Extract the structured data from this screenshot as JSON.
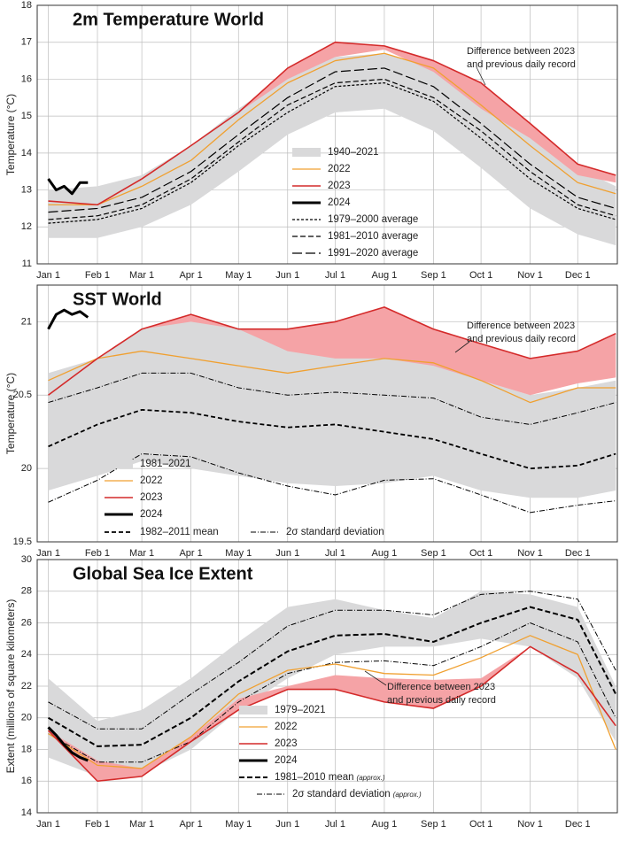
{
  "chart_data": [
    {
      "type": "line",
      "title": "2m Temperature World",
      "ylabel": "Temperature (°C)",
      "xlim": [
        -7,
        359
      ],
      "ylim": [
        11,
        18
      ],
      "yticks": [
        11,
        12,
        13,
        14,
        15,
        16,
        17,
        18
      ],
      "grid": true,
      "xticks": [
        {
          "value": 0,
          "label": "Jan 1"
        },
        {
          "value": 31,
          "label": "Feb 1"
        },
        {
          "value": 59,
          "label": "Mar 1"
        },
        {
          "value": 90,
          "label": "Apr 1"
        },
        {
          "value": 120,
          "label": "May 1"
        },
        {
          "value": 151,
          "label": "Jun 1"
        },
        {
          "value": 181,
          "label": "Jul 1"
        },
        {
          "value": 212,
          "label": "Aug 1"
        },
        {
          "value": 243,
          "label": "Sep 1"
        },
        {
          "value": 273,
          "label": "Oct 1"
        },
        {
          "value": 304,
          "label": "Nov 1"
        },
        {
          "value": 334,
          "label": "Dec 1"
        }
      ],
      "x": [
        0,
        31,
        59,
        90,
        120,
        151,
        181,
        212,
        243,
        273,
        304,
        334,
        358
      ],
      "annotation": [
        "Difference between 2023",
        "and previous daily record"
      ],
      "difference": {
        "color": "#f5a3a6",
        "lower": [
          12.7,
          12.6,
          13.3,
          14.2,
          15.1,
          16.0,
          16.6,
          16.8,
          16.2,
          15.2,
          14.4,
          13.4,
          13.2
        ],
        "upper": [
          12.7,
          12.6,
          13.3,
          14.2,
          15.1,
          16.3,
          17.0,
          16.9,
          16.5,
          15.9,
          14.8,
          13.7,
          13.4
        ]
      },
      "bands": [
        {
          "name": "1940–2021",
          "color": "#d9d9da",
          "lower": [
            11.7,
            11.7,
            12.0,
            12.6,
            13.5,
            14.5,
            15.1,
            15.2,
            14.6,
            13.6,
            12.5,
            11.8,
            11.5
          ],
          "upper": [
            13.0,
            13.1,
            13.4,
            14.2,
            15.2,
            16.1,
            16.6,
            16.7,
            16.3,
            15.4,
            14.5,
            13.6,
            13.1
          ]
        }
      ],
      "series": [
        {
          "name": "2022",
          "color": "#f0a030",
          "width": 1.3,
          "values": [
            12.6,
            12.6,
            13.1,
            13.8,
            14.9,
            15.9,
            16.5,
            16.7,
            16.3,
            15.3,
            14.2,
            13.2,
            12.9
          ]
        },
        {
          "name": "2023",
          "color": "#d42a2a",
          "width": 1.6,
          "values": [
            12.7,
            12.6,
            13.3,
            14.2,
            15.1,
            16.3,
            17.0,
            16.9,
            16.5,
            15.9,
            14.8,
            13.7,
            13.4
          ]
        },
        {
          "name": "2024",
          "color": "#000000",
          "width": 3,
          "x": [
            0,
            5,
            10,
            15,
            20,
            25
          ],
          "values": [
            13.3,
            13.0,
            13.1,
            12.9,
            13.2,
            13.2
          ]
        },
        {
          "name": "1979–2000 average",
          "color": "#000000",
          "width": 1.2,
          "dash": "3,2",
          "values": [
            12.1,
            12.2,
            12.5,
            13.2,
            14.2,
            15.1,
            15.8,
            15.9,
            15.4,
            14.4,
            13.3,
            12.5,
            12.2
          ]
        },
        {
          "name": "1981–2010 average",
          "color": "#000000",
          "width": 1.2,
          "dash": "6,3",
          "values": [
            12.2,
            12.3,
            12.6,
            13.3,
            14.3,
            15.3,
            15.9,
            16.0,
            15.5,
            14.6,
            13.5,
            12.6,
            12.3
          ]
        },
        {
          "name": "1991–2020 average",
          "color": "#000000",
          "width": 1.2,
          "dash": "11,4",
          "values": [
            12.4,
            12.5,
            12.8,
            13.5,
            14.5,
            15.5,
            16.2,
            16.3,
            15.8,
            14.8,
            13.7,
            12.8,
            12.5
          ]
        }
      ]
    },
    {
      "type": "line",
      "title": "SST World",
      "ylabel": "Temperature (°C)",
      "xlim": [
        -7,
        359
      ],
      "ylim": [
        19.5,
        21.25
      ],
      "yticks": [
        19.5,
        20,
        20.5,
        21
      ],
      "grid": true,
      "xticks": [
        {
          "value": 0,
          "label": "Jan 1"
        },
        {
          "value": 31,
          "label": "Feb 1"
        },
        {
          "value": 59,
          "label": "Mar 1"
        },
        {
          "value": 90,
          "label": "Apr 1"
        },
        {
          "value": 120,
          "label": "May 1"
        },
        {
          "value": 151,
          "label": "Jun 1"
        },
        {
          "value": 181,
          "label": "Jul 1"
        },
        {
          "value": 212,
          "label": "Aug 1"
        },
        {
          "value": 243,
          "label": "Sep 1"
        },
        {
          "value": 273,
          "label": "Oct 1"
        },
        {
          "value": 304,
          "label": "Nov 1"
        },
        {
          "value": 334,
          "label": "Dec 1"
        }
      ],
      "x": [
        0,
        31,
        59,
        90,
        120,
        151,
        181,
        212,
        243,
        273,
        304,
        334,
        358
      ],
      "annotation": [
        "Difference between 2023",
        "and previous daily record"
      ],
      "difference": {
        "color": "#f5a3a6",
        "lower": [
          20.5,
          20.75,
          20.95,
          21.0,
          20.95,
          20.8,
          20.75,
          20.75,
          20.7,
          20.6,
          20.5,
          20.58,
          20.62
        ],
        "upper": [
          20.5,
          20.75,
          20.95,
          21.05,
          20.95,
          20.95,
          21.0,
          21.1,
          20.95,
          20.85,
          20.75,
          20.8,
          20.92
        ]
      },
      "bands": [
        {
          "name": "1981–2021",
          "color": "#d9d9da",
          "lower": [
            19.85,
            19.95,
            20.05,
            20.0,
            19.95,
            19.9,
            19.88,
            19.9,
            19.95,
            19.85,
            19.8,
            19.8,
            19.85
          ],
          "upper": [
            20.65,
            20.75,
            20.95,
            21.05,
            20.95,
            20.85,
            20.8,
            20.8,
            20.75,
            20.6,
            20.5,
            20.55,
            20.6
          ]
        }
      ],
      "series": [
        {
          "name": "2022",
          "color": "#f0a030",
          "width": 1.3,
          "values": [
            20.6,
            20.75,
            20.8,
            20.75,
            20.7,
            20.65,
            20.7,
            20.75,
            20.72,
            20.6,
            20.45,
            20.55,
            20.55
          ]
        },
        {
          "name": "2023",
          "color": "#d42a2a",
          "width": 1.6,
          "values": [
            20.5,
            20.75,
            20.95,
            21.05,
            20.95,
            20.95,
            21.0,
            21.1,
            20.95,
            20.85,
            20.75,
            20.8,
            20.92
          ]
        },
        {
          "name": "2024",
          "color": "#000000",
          "width": 3,
          "x": [
            0,
            5,
            10,
            15,
            20,
            25
          ],
          "values": [
            20.95,
            21.05,
            21.08,
            21.05,
            21.07,
            21.03
          ]
        },
        {
          "name": "1982–2011 mean",
          "color": "#000000",
          "width": 1.8,
          "dash": "5,3",
          "values": [
            20.15,
            20.3,
            20.4,
            20.38,
            20.32,
            20.28,
            20.3,
            20.25,
            20.2,
            20.1,
            20.0,
            20.02,
            20.1
          ]
        },
        {
          "name": "2σ standard deviation",
          "color": "#000000",
          "width": 1,
          "dash": "6,2,1,2",
          "values": [
            20.45,
            20.55,
            20.65,
            20.65,
            20.55,
            20.5,
            20.52,
            20.5,
            20.48,
            20.35,
            20.3,
            20.38,
            20.45
          ],
          "lower": [
            19.77,
            19.92,
            20.1,
            20.08,
            19.97,
            19.88,
            19.82,
            19.92,
            19.93,
            19.82,
            19.7,
            19.75,
            19.78
          ]
        }
      ]
    },
    {
      "type": "line",
      "title": "Global Sea Ice Extent",
      "ylabel": "Extent (millions of square kilometers)",
      "xlim": [
        -7,
        359
      ],
      "ylim": [
        14,
        30
      ],
      "yticks": [
        14,
        16,
        18,
        20,
        22,
        24,
        26,
        28,
        30
      ],
      "grid": true,
      "xticks": [
        {
          "value": 0,
          "label": "Jan 1"
        },
        {
          "value": 31,
          "label": "Feb 1"
        },
        {
          "value": 59,
          "label": "Mar 1"
        },
        {
          "value": 90,
          "label": "Apr 1"
        },
        {
          "value": 120,
          "label": "May 1"
        },
        {
          "value": 151,
          "label": "Jun 1"
        },
        {
          "value": 181,
          "label": "Jul 1"
        },
        {
          "value": 212,
          "label": "Aug 1"
        },
        {
          "value": 243,
          "label": "Sep 1"
        },
        {
          "value": 273,
          "label": "Oct 1"
        },
        {
          "value": 304,
          "label": "Nov 1"
        },
        {
          "value": 334,
          "label": "Dec 1"
        }
      ],
      "x": [
        0,
        31,
        59,
        90,
        120,
        151,
        181,
        212,
        243,
        273,
        304,
        334,
        358
      ],
      "annotation": [
        "Difference between 2023",
        "and previous daily record"
      ],
      "difference": {
        "color": "#f5a3a6",
        "lower": [
          19.2,
          16.0,
          16.3,
          18.5,
          20.5,
          21.8,
          21.8,
          21.0,
          20.6,
          22.0,
          24.5,
          22.8,
          19.5
        ],
        "upper": [
          19.2,
          17.3,
          16.8,
          18.8,
          21.2,
          22.0,
          22.7,
          22.5,
          22.4,
          22.5,
          24.5,
          22.8,
          19.5
        ]
      },
      "bands": [
        {
          "name": "1979–2021",
          "color": "#d9d9da",
          "lower": [
            17.5,
            16.3,
            16.5,
            18.0,
            20.5,
            22.5,
            24.0,
            24.5,
            24.5,
            25.0,
            24.5,
            22.5,
            18.5
          ],
          "upper": [
            22.5,
            19.8,
            20.5,
            22.5,
            24.8,
            27.0,
            27.5,
            26.8,
            26.3,
            28.0,
            27.8,
            27.0,
            22.0
          ]
        }
      ],
      "series": [
        {
          "name": "2022",
          "color": "#f0a030",
          "width": 1.3,
          "values": [
            19.0,
            17.0,
            16.8,
            18.8,
            21.5,
            23.0,
            23.4,
            22.8,
            22.7,
            23.8,
            25.2,
            24.0,
            18.0
          ]
        },
        {
          "name": "2023",
          "color": "#d42a2a",
          "width": 1.6,
          "values": [
            19.2,
            16.0,
            16.3,
            18.5,
            20.5,
            21.8,
            21.8,
            21.0,
            20.6,
            22.0,
            24.5,
            22.8,
            19.5
          ]
        },
        {
          "name": "2024",
          "color": "#000000",
          "width": 3,
          "x": [
            0,
            5,
            10,
            15,
            20,
            25
          ],
          "values": [
            19.4,
            18.9,
            18.3,
            17.8,
            17.5,
            17.3
          ]
        },
        {
          "name": "1981–2010 mean",
          "note": "(approx.)",
          "color": "#000000",
          "width": 2,
          "dash": "6,3",
          "values": [
            20.0,
            18.2,
            18.3,
            20.0,
            22.3,
            24.2,
            25.2,
            25.3,
            24.8,
            26.0,
            27.0,
            26.2,
            21.5
          ]
        },
        {
          "name": "2σ standard deviation",
          "note": "(approx.)",
          "color": "#000000",
          "width": 1,
          "dash": "6,2,1,2",
          "values": [
            21.0,
            19.3,
            19.3,
            21.5,
            23.5,
            25.8,
            26.8,
            26.8,
            26.5,
            27.8,
            28.0,
            27.5,
            23.0
          ],
          "lower": [
            19.0,
            17.2,
            17.2,
            18.5,
            21.0,
            22.8,
            23.5,
            23.6,
            23.3,
            24.5,
            26.0,
            24.8,
            20.0
          ]
        }
      ]
    }
  ]
}
